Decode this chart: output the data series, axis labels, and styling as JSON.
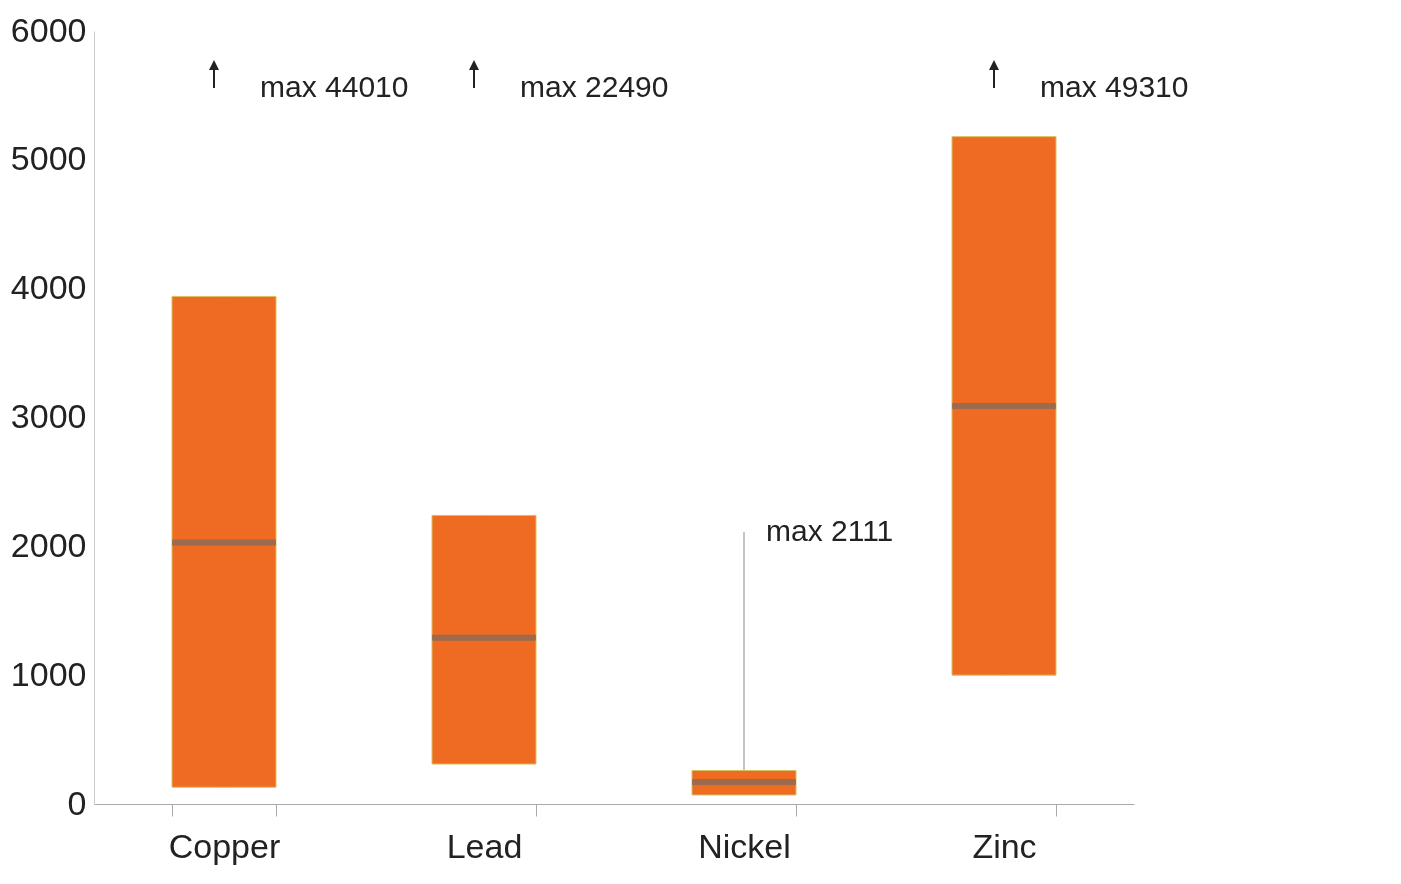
{
  "chart_data": {
    "type": "box",
    "categories": [
      "Copper",
      "Lead",
      "Nickel",
      "Zinc"
    ],
    "series": [
      {
        "color": "#ef6b22",
        "boxes": [
          {
            "low": 130,
            "q1": 130,
            "median": 2030,
            "q3": 3940,
            "high": 3940
          },
          {
            "low": 310,
            "q1": 310,
            "median": 1290,
            "q3": 2240,
            "high": 2240
          },
          {
            "low": 70,
            "q1": 70,
            "median": 170,
            "q3": 260,
            "high": 2111
          },
          {
            "low": 1000,
            "q1": 1000,
            "median": 3090,
            "q3": 5180,
            "high": 5180
          }
        ]
      }
    ],
    "ylim": [
      0,
      6000
    ],
    "yticks": [
      0,
      1000,
      2000,
      3000,
      4000,
      5000,
      6000
    ],
    "grid": false,
    "annotations": [
      "max 44010",
      "max 22490",
      {
        "text": "max 2111",
        "x": "Nickel",
        "y": 2111
      },
      "max 49310"
    ]
  }
}
